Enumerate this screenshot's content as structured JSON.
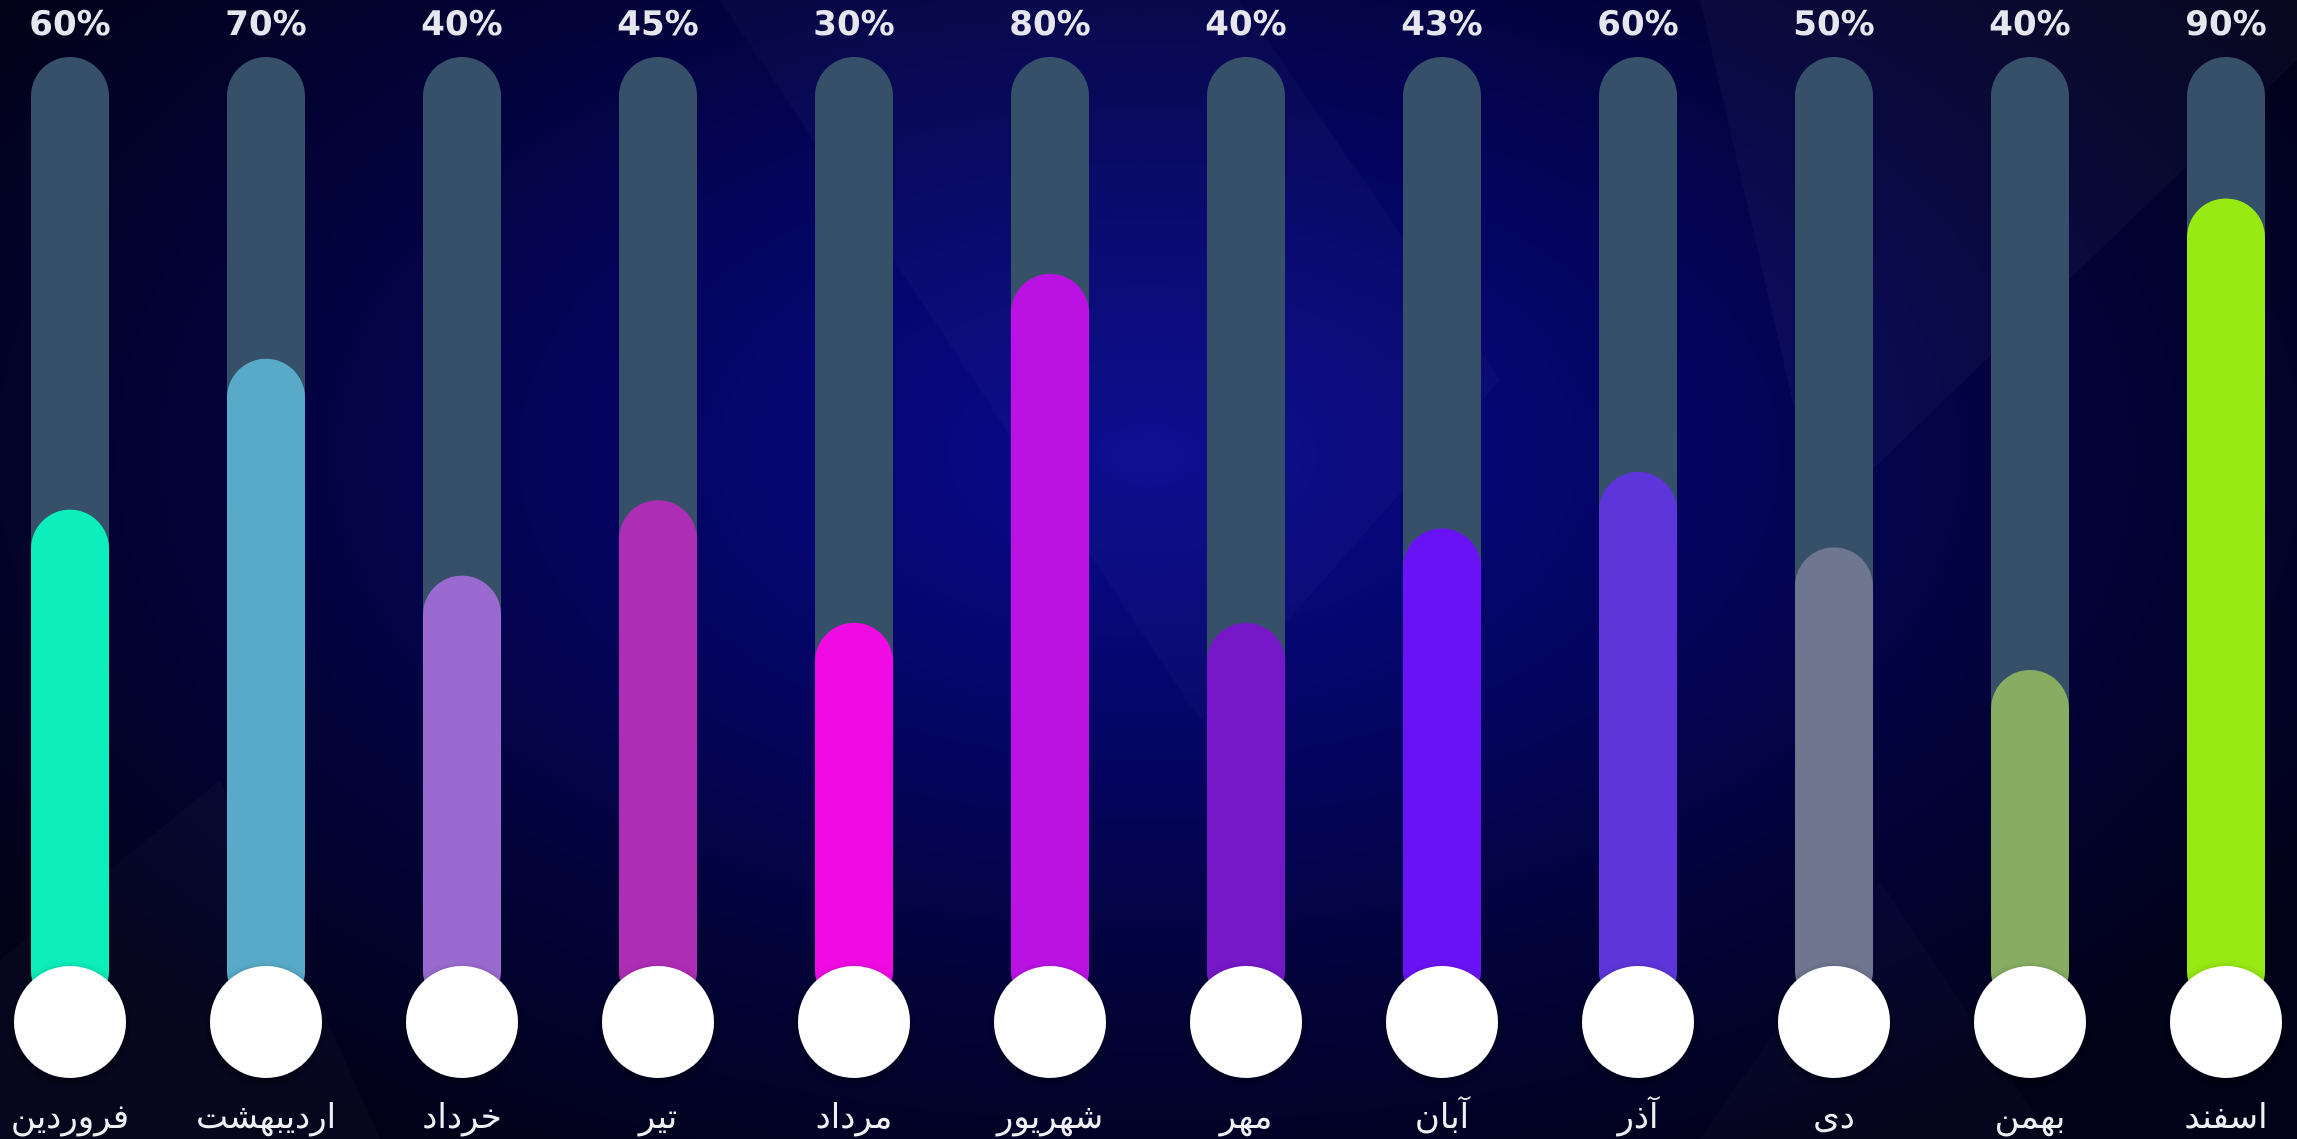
{
  "chart_data": {
    "type": "bar",
    "categories": [
      "فروردین",
      "اردیبهشت",
      "خرداد",
      "تیر",
      "مرداد",
      "شهریور",
      "مهر",
      "آبان",
      "آذر",
      "دی",
      "بهمن",
      "اسفند"
    ],
    "values": [
      60,
      70,
      40,
      45,
      30,
      80,
      40,
      43,
      60,
      50,
      40,
      90
    ],
    "value_labels": [
      "60%",
      "70%",
      "40%",
      "45%",
      "30%",
      "80%",
      "40%",
      "43%",
      "60%",
      "50%",
      "40%",
      "90%"
    ],
    "fill_levels": [
      0.52,
      0.68,
      0.45,
      0.53,
      0.4,
      0.77,
      0.4,
      0.5,
      0.56,
      0.48,
      0.35,
      0.85
    ],
    "colors": [
      "#0ceebb",
      "#58aac8",
      "#9a6ad0",
      "#ad2db5",
      "#f00ae3",
      "#bb12e3",
      "#7617c8",
      "#6a12f6",
      "#5d35da",
      "#6f768f",
      "#88ad62",
      "#97ea12"
    ],
    "track_color": "#37506a",
    "knob_color": "#ffffff",
    "ylim": [
      0,
      100
    ],
    "grid": false,
    "legend": "none",
    "title": "",
    "xlabel": "",
    "ylabel": ""
  }
}
